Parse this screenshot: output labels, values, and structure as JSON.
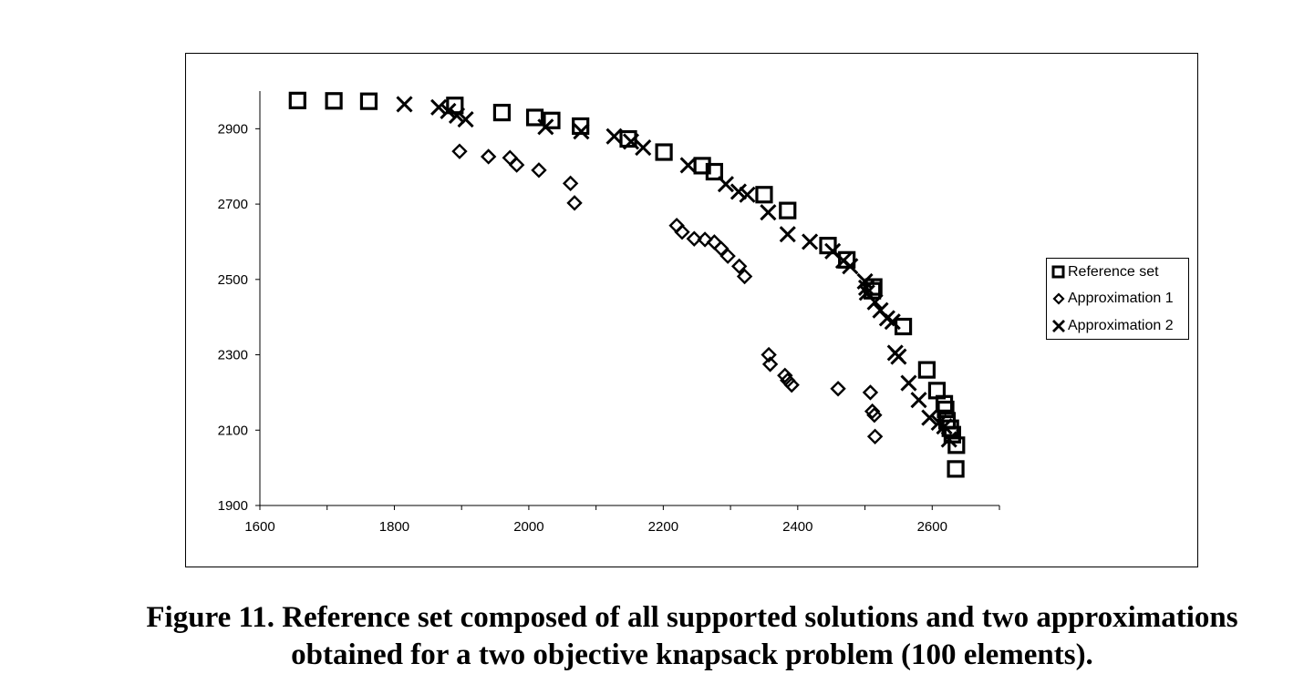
{
  "chart_data": {
    "type": "scatter",
    "title": "",
    "xlabel": "",
    "ylabel": "",
    "xlim": [
      1600,
      2700
    ],
    "ylim": [
      1900,
      3000
    ],
    "x_ticks": [
      "1600",
      "1800",
      "2000",
      "2200",
      "2400",
      "2600"
    ],
    "y_ticks": [
      "1900",
      "2100",
      "2300",
      "2500",
      "2700",
      "2900"
    ],
    "grid": false,
    "legend_position": "right",
    "series": [
      {
        "name": "Reference set",
        "marker": "square",
        "points": [
          [
            1656,
            2975
          ],
          [
            1710,
            2974
          ],
          [
            1762,
            2973
          ],
          [
            1890,
            2962
          ],
          [
            1960,
            2943
          ],
          [
            2009,
            2930
          ],
          [
            2034,
            2922
          ],
          [
            2077,
            2907
          ],
          [
            2148,
            2873
          ],
          [
            2201,
            2838
          ],
          [
            2258,
            2802
          ],
          [
            2276,
            2786
          ],
          [
            2350,
            2725
          ],
          [
            2385,
            2683
          ],
          [
            2445,
            2590
          ],
          [
            2473,
            2552
          ],
          [
            2513,
            2480
          ],
          [
            2511,
            2470
          ],
          [
            2557,
            2375
          ],
          [
            2592,
            2260
          ],
          [
            2607,
            2205
          ],
          [
            2618,
            2170
          ],
          [
            2620,
            2155
          ],
          [
            2622,
            2125
          ],
          [
            2627,
            2105
          ],
          [
            2630,
            2088
          ],
          [
            2636,
            2060
          ],
          [
            2635,
            1997
          ]
        ]
      },
      {
        "name": "Approximation 1",
        "marker": "diamond",
        "points": [
          [
            1897,
            2840
          ],
          [
            1940,
            2826
          ],
          [
            1972,
            2823
          ],
          [
            1982,
            2804
          ],
          [
            2015,
            2790
          ],
          [
            2062,
            2755
          ],
          [
            2068,
            2703
          ],
          [
            2220,
            2643
          ],
          [
            2228,
            2626
          ],
          [
            2246,
            2608
          ],
          [
            2262,
            2606
          ],
          [
            2276,
            2599
          ],
          [
            2286,
            2582
          ],
          [
            2296,
            2562
          ],
          [
            2313,
            2535
          ],
          [
            2321,
            2508
          ],
          [
            2357,
            2300
          ],
          [
            2359,
            2275
          ],
          [
            2381,
            2245
          ],
          [
            2385,
            2232
          ],
          [
            2391,
            2220
          ],
          [
            2460,
            2210
          ],
          [
            2508,
            2200
          ],
          [
            2511,
            2150
          ],
          [
            2514,
            2140
          ],
          [
            2515,
            2083
          ]
        ]
      },
      {
        "name": "Approximation 2",
        "marker": "x",
        "points": [
          [
            1815,
            2965
          ],
          [
            1866,
            2957
          ],
          [
            1880,
            2947
          ],
          [
            1893,
            2935
          ],
          [
            1906,
            2925
          ],
          [
            2025,
            2905
          ],
          [
            2078,
            2893
          ],
          [
            2127,
            2880
          ],
          [
            2152,
            2866
          ],
          [
            2170,
            2850
          ],
          [
            2237,
            2803
          ],
          [
            2293,
            2753
          ],
          [
            2312,
            2733
          ],
          [
            2325,
            2725
          ],
          [
            2356,
            2678
          ],
          [
            2385,
            2620
          ],
          [
            2418,
            2600
          ],
          [
            2452,
            2575
          ],
          [
            2468,
            2550
          ],
          [
            2478,
            2535
          ],
          [
            2500,
            2495
          ],
          [
            2502,
            2478
          ],
          [
            2503,
            2465
          ],
          [
            2515,
            2440
          ],
          [
            2523,
            2418
          ],
          [
            2533,
            2397
          ],
          [
            2541,
            2388
          ],
          [
            2545,
            2305
          ],
          [
            2550,
            2295
          ],
          [
            2565,
            2225
          ],
          [
            2580,
            2180
          ],
          [
            2596,
            2133
          ],
          [
            2610,
            2120
          ],
          [
            2618,
            2110
          ],
          [
            2625,
            2075
          ]
        ]
      }
    ]
  },
  "caption": {
    "line1": "Figure 11. Reference set composed of all supported solutions and two approximations",
    "line2": "obtained for a two objective knapsack problem (100 elements)."
  },
  "colors": {
    "marker": "#000000",
    "axis": "#000000",
    "background": "#ffffff"
  }
}
